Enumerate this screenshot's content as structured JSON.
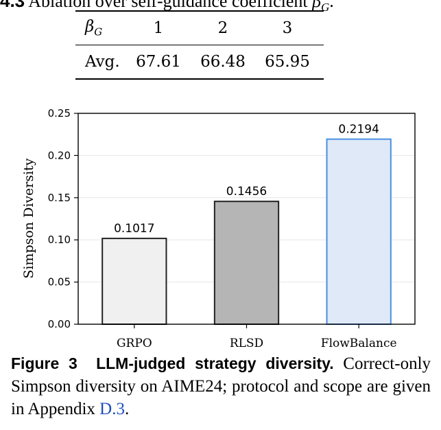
{
  "table_caption": {
    "number": "4.3",
    "text": "Ablation over self-guidance coefficient",
    "symbol": "β",
    "symbol_sub": "G",
    "suffix": "."
  },
  "table": {
    "header": {
      "label": "β",
      "label_sub": "G",
      "cols": [
        "1",
        "2",
        "3"
      ]
    },
    "rows": [
      {
        "label": "Avg.",
        "values": [
          "67.61",
          "66.48",
          "65.95"
        ]
      }
    ]
  },
  "chart_data": {
    "type": "bar",
    "categories": [
      "GRPO",
      "RLSD",
      "FlowBalance"
    ],
    "values": [
      0.1017,
      0.1456,
      0.2194
    ],
    "data_labels": [
      "0.1017",
      "0.1456",
      "0.2194"
    ],
    "ylabel": "Simpson Diversity",
    "xlabel": "",
    "ylim": [
      0,
      0.25
    ],
    "yticks": [
      "0.00",
      "0.05",
      "0.10",
      "0.15",
      "0.20",
      "0.25"
    ],
    "grid": "horizontal",
    "colors": {
      "bar_fills": [
        "#f0f0f0",
        "#b5b5b5",
        "#dfe9f8"
      ],
      "bar_edges": [
        "#222222",
        "#222222",
        "#4a8fe0"
      ],
      "gridline": "#e6e6e6",
      "axis": "#000000"
    }
  },
  "figure_caption": {
    "label": "Figure 3",
    "title": "LLM-judged strategy diversity.",
    "body": "Correct-only Simpson diversity on AIME24; protocol and scope are given in Appendix",
    "link": "D.3",
    "end": "."
  }
}
